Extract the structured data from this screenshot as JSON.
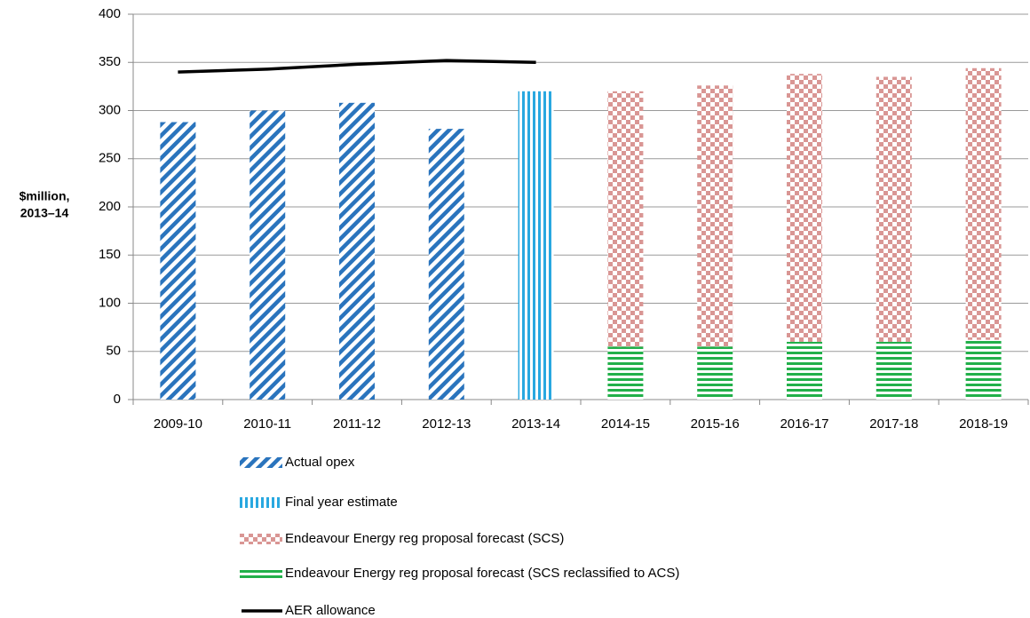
{
  "chart_data": {
    "type": "bar",
    "y_label": [
      "$million,",
      "2013–14"
    ],
    "categories": [
      "2009-10",
      "2010-11",
      "2011-12",
      "2012-13",
      "2013-14",
      "2014-15",
      "2015-16",
      "2016-17",
      "2017-18",
      "2018-19"
    ],
    "series": [
      {
        "name": "Actual opex",
        "type": "bar",
        "color": "#2a74bd",
        "pattern": "diagonal",
        "values": [
          288,
          300,
          308,
          281,
          null,
          null,
          null,
          null,
          null,
          null
        ]
      },
      {
        "name": "Final year estimate",
        "type": "bar",
        "color": "#29a8e0",
        "pattern": "vertical",
        "values": [
          null,
          null,
          null,
          null,
          320,
          null,
          null,
          null,
          null,
          null
        ]
      },
      {
        "name": "Endeavour Energy reg proposal forecast (SCS)",
        "type": "bar",
        "color": "#d99694",
        "pattern": "checker",
        "values": [
          null,
          null,
          null,
          null,
          null,
          265,
          271,
          278,
          275,
          282
        ]
      },
      {
        "name": "Endeavour Energy reg proposal forecast (SCS reclassified to ACS)",
        "type": "bar",
        "color": "#22b04a",
        "pattern": "horizontal",
        "values": [
          null,
          null,
          null,
          null,
          null,
          55,
          55,
          60,
          60,
          62
        ]
      },
      {
        "name": "AER allowance",
        "type": "line",
        "color": "#000000",
        "values": [
          340,
          343,
          348,
          352,
          350,
          null,
          null,
          null,
          null,
          null
        ]
      }
    ],
    "ylim": [
      0,
      400
    ],
    "yticks": [
      0,
      50,
      100,
      150,
      200,
      250,
      300,
      350,
      400
    ],
    "grid": true,
    "legend": "bottom"
  }
}
